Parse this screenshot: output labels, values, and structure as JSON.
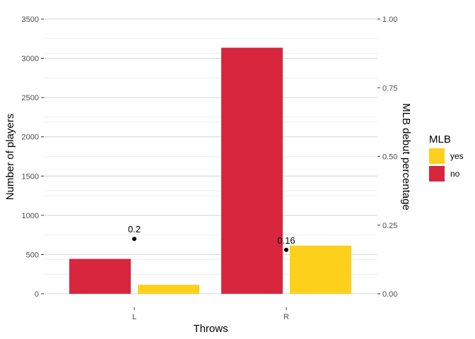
{
  "chart_data": {
    "type": "bar",
    "categories": [
      "L",
      "R"
    ],
    "series": [
      {
        "name": "no",
        "values": [
          445,
          3135
        ],
        "color": "#d7263d"
      },
      {
        "name": "yes",
        "values": [
          115,
          615
        ],
        "color": "#fdd01b"
      }
    ],
    "percentage": {
      "values": [
        0.2,
        0.16
      ],
      "labels": [
        "0.2",
        "0.16"
      ]
    },
    "xlabel": "Throws",
    "ylabel": "Number of players",
    "y2label": "MLB debut percentage",
    "ylim": [
      0,
      3500
    ],
    "y2lim": [
      0,
      1
    ],
    "yticks": [
      "0",
      "500",
      "1000",
      "1500",
      "2000",
      "2500",
      "3000",
      "3500"
    ],
    "y2ticks": [
      "0.00",
      "0.25",
      "0.50",
      "0.75",
      "1.00"
    ],
    "grid": true,
    "legend": {
      "title": "MLB",
      "placement": "right",
      "items": [
        {
          "label": "yes",
          "color": "#fdd01b"
        },
        {
          "label": "no",
          "color": "#d7263d"
        }
      ]
    }
  }
}
